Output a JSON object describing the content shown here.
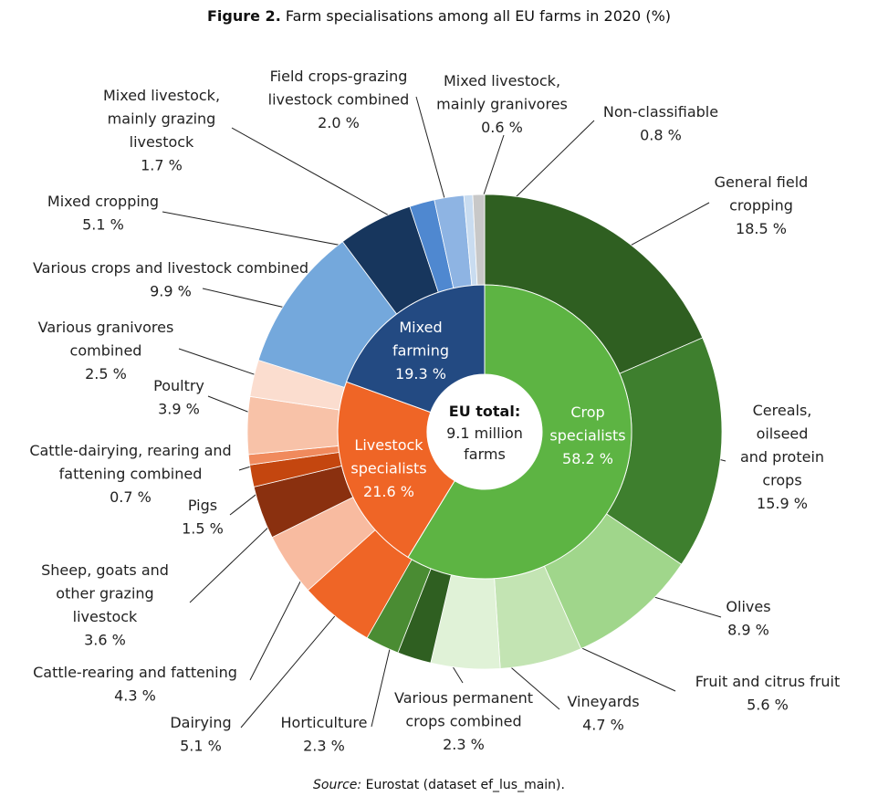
{
  "figure": {
    "label": "Figure 2.",
    "title": "Farm specialisations among all EU farms in 2020 (%)"
  },
  "source": {
    "label": "Source:",
    "text": "Eurostat (dataset ef_lus_main)."
  },
  "colors": {
    "crop_inner": "#5db443",
    "livestock_inner": "#ef6526",
    "mixed_inner": "#234a82",
    "general_field": "#2f5f21",
    "cereals": "#3e7f2e",
    "olives": "#a0d68b",
    "fruit": "#c3e4b3",
    "vineyards": "#e0f2d7",
    "various_permanent": "#2f5f21",
    "horticulture": "#4a8c33",
    "dairying": "#ef6526",
    "cattle_rearing": "#f8bba0",
    "sheep": "#8a300f",
    "pigs": "#c4460f",
    "cattle_dairying": "#f08a5d",
    "poultry": "#f8c2a8",
    "granivores": "#fbddcf",
    "various_crops_livestock": "#74a8dc",
    "mixed_cropping": "#17365d",
    "mixed_grazing": "#4f88d0",
    "field_grazing": "#8eb4e3",
    "mixed_granivores": "#c9dcf0",
    "non_classifiable": "#c8c8c8"
  },
  "chart_data": {
    "type": "pie",
    "subtype": "sunburst",
    "unit": "%",
    "center": {
      "title": "EU total:",
      "line1": "9.1 million",
      "line2": "farms"
    },
    "inner": [
      {
        "label_lines": [
          "Crop",
          "specialists"
        ],
        "value": 58.2,
        "value_text": "58.2 %",
        "color_key": "crop_inner"
      },
      {
        "label_lines": [
          "Livestock",
          "specialists"
        ],
        "value": 21.6,
        "value_text": "21.6 %",
        "color_key": "livestock_inner"
      },
      {
        "label_lines": [
          "Mixed",
          "farming"
        ],
        "value": 19.3,
        "value_text": "19.3 %",
        "color_key": "mixed_inner"
      }
    ],
    "outer": [
      {
        "label_lines": [
          "General field",
          "cropping"
        ],
        "value": 18.5,
        "value_text": "18.5 %",
        "color_key": "general_field"
      },
      {
        "label_lines": [
          "Cereals,",
          "oilseed",
          "and protein",
          "crops"
        ],
        "value": 15.9,
        "value_text": "15.9 %",
        "color_key": "cereals"
      },
      {
        "label_lines": [
          "Olives"
        ],
        "value": 8.9,
        "value_text": "8.9 %",
        "color_key": "olives"
      },
      {
        "label_lines": [
          "Fruit and citrus fruit"
        ],
        "value": 5.6,
        "value_text": "5.6 %",
        "color_key": "fruit"
      },
      {
        "label_lines": [
          "Vineyards"
        ],
        "value": 4.7,
        "value_text": "4.7 %",
        "color_key": "vineyards"
      },
      {
        "label_lines": [
          "Various permanent",
          "crops combined"
        ],
        "value": 2.3,
        "value_text": "2.3 %",
        "color_key": "various_permanent"
      },
      {
        "label_lines": [
          "Horticulture"
        ],
        "value": 2.3,
        "value_text": "2.3 %",
        "color_key": "horticulture"
      },
      {
        "label_lines": [
          "Dairying"
        ],
        "value": 5.1,
        "value_text": "5.1 %",
        "color_key": "dairying"
      },
      {
        "label_lines": [
          "Cattle-rearing and fattening"
        ],
        "value": 4.3,
        "value_text": "4.3 %",
        "color_key": "cattle_rearing"
      },
      {
        "label_lines": [
          "Sheep, goats and",
          "other grazing",
          "livestock"
        ],
        "value": 3.6,
        "value_text": "3.6 %",
        "color_key": "sheep"
      },
      {
        "label_lines": [
          "Pigs"
        ],
        "value": 1.5,
        "value_text": "1.5 %",
        "color_key": "pigs"
      },
      {
        "label_lines": [
          "Cattle-dairying, rearing and",
          "fattening combined"
        ],
        "value": 0.7,
        "value_text": "0.7 %",
        "color_key": "cattle_dairying"
      },
      {
        "label_lines": [
          "Poultry"
        ],
        "value": 3.9,
        "value_text": "3.9 %",
        "color_key": "poultry"
      },
      {
        "label_lines": [
          "Various granivores",
          "combined"
        ],
        "value": 2.5,
        "value_text": "2.5 %",
        "color_key": "granivores"
      },
      {
        "label_lines": [
          "Various crops and livestock combined"
        ],
        "value": 9.9,
        "value_text": "9.9 %",
        "color_key": "various_crops_livestock"
      },
      {
        "label_lines": [
          "Mixed cropping"
        ],
        "value": 5.1,
        "value_text": "5.1 %",
        "color_key": "mixed_cropping"
      },
      {
        "label_lines": [
          "Mixed livestock,",
          "mainly grazing",
          "livestock"
        ],
        "value": 1.7,
        "value_text": "1.7 %",
        "color_key": "mixed_grazing"
      },
      {
        "label_lines": [
          "Field crops-grazing",
          "livestock combined"
        ],
        "value": 2.0,
        "value_text": "2.0 %",
        "color_key": "field_grazing"
      },
      {
        "label_lines": [
          "Mixed livestock,",
          "mainly granivores"
        ],
        "value": 0.6,
        "value_text": "0.6 %",
        "color_key": "mixed_granivores"
      },
      {
        "label_lines": [
          "Non-classifiable"
        ],
        "value": 0.8,
        "value_text": "0.8 %",
        "color_key": "non_classifiable"
      }
    ]
  }
}
